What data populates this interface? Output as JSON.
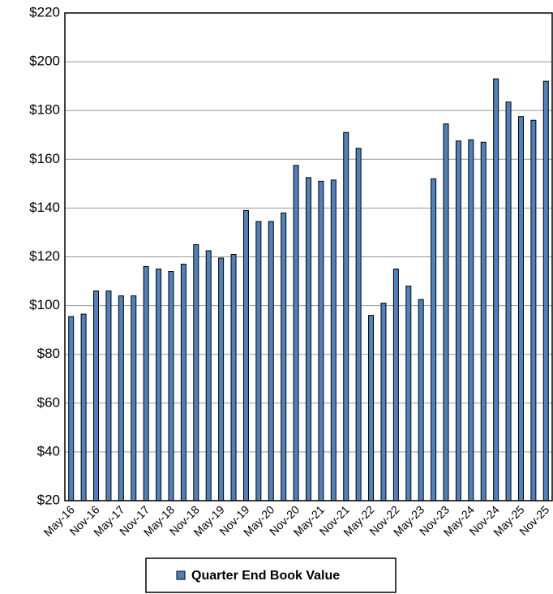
{
  "chart_data": {
    "type": "bar",
    "categories": [
      "May-16",
      null,
      "Nov-16",
      null,
      "May-17",
      null,
      "Nov-17",
      null,
      "May-18",
      null,
      "Nov-18",
      null,
      "May-19",
      null,
      "Nov-19",
      null,
      "May-20",
      null,
      "Nov-20",
      null,
      "May-21",
      null,
      "Nov-21",
      null,
      "May-22",
      null,
      "Nov-22",
      null,
      "May-23",
      null,
      "Nov-23",
      null,
      "May-24",
      null,
      "Nov-24",
      null,
      "May-25",
      null,
      "Nov-25"
    ],
    "series": [
      {
        "name": "Quarter End Book Value",
        "color": "#4f81bd",
        "values": [
          95.5,
          96.5,
          106,
          106,
          104,
          104,
          116,
          115,
          114,
          117,
          125,
          122.5,
          119.5,
          121,
          139,
          134.5,
          134.5,
          138,
          157.5,
          152.5,
          151,
          151.5,
          171,
          164.5,
          96,
          101,
          115,
          108,
          102.5,
          152,
          174.5,
          167.5,
          168,
          167,
          193,
          183.5,
          177.5,
          176,
          192
        ]
      }
    ],
    "ylim": [
      20,
      220
    ],
    "yticks": [
      {
        "value": 20,
        "label": "$20"
      },
      {
        "value": 40,
        "label": "$40"
      },
      {
        "value": 60,
        "label": "$60"
      },
      {
        "value": 80,
        "label": "$80"
      },
      {
        "value": 100,
        "label": "$100"
      },
      {
        "value": 120,
        "label": "$120"
      },
      {
        "value": 140,
        "label": "$140"
      },
      {
        "value": 160,
        "label": "$160"
      },
      {
        "value": 180,
        "label": "$180"
      },
      {
        "value": 200,
        "label": "$200"
      },
      {
        "value": 220,
        "label": "$220"
      }
    ],
    "grid": true,
    "legend": "bottom"
  }
}
